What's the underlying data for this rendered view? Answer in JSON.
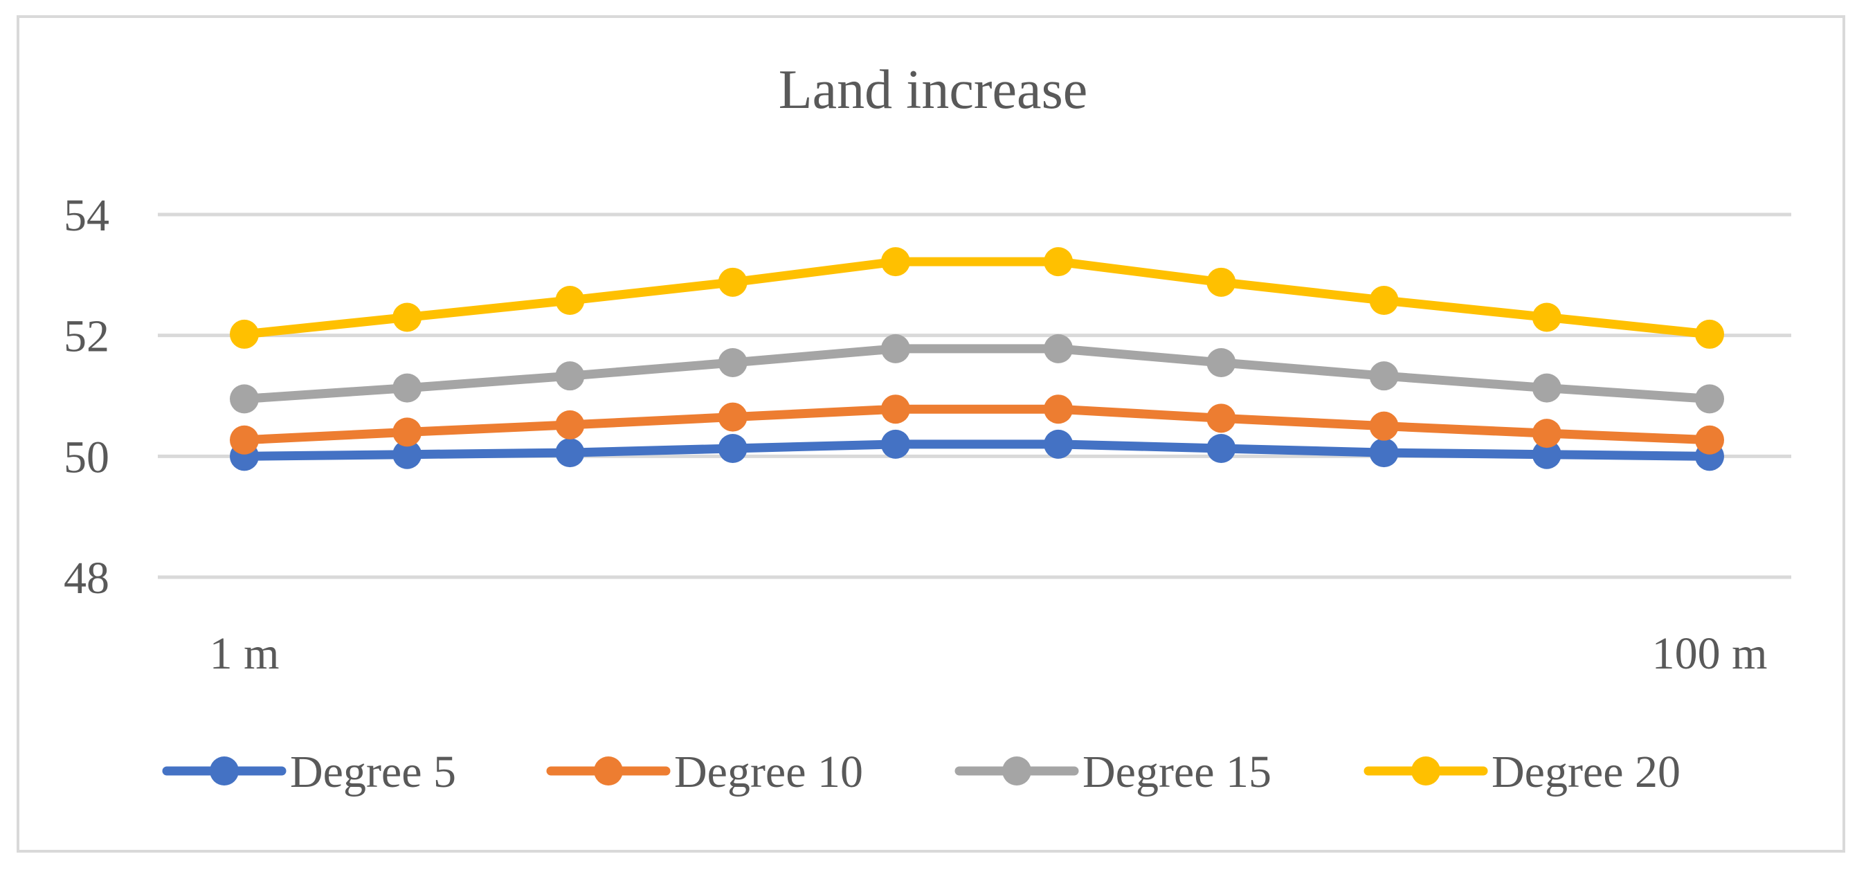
{
  "chart_data": {
    "type": "line",
    "title": "Land increase",
    "xlabel": "",
    "ylabel": "",
    "x_tick_labels": [
      "1 m",
      "100 m"
    ],
    "x": [
      1,
      2,
      3,
      4,
      5,
      6,
      7,
      8,
      9,
      10
    ],
    "ylim": [
      48,
      54
    ],
    "yticks": [
      48,
      50,
      52,
      54
    ],
    "y_tick_labels": [
      "48",
      "50",
      "52",
      "54"
    ],
    "grid": true,
    "legend_position": "bottom",
    "series": [
      {
        "name": "Degree 5",
        "color": "#4472c4",
        "values": [
          50.0,
          50.03,
          50.06,
          50.13,
          50.2,
          50.2,
          50.13,
          50.06,
          50.03,
          50.0
        ]
      },
      {
        "name": "Degree 10",
        "color": "#ed7d31",
        "values": [
          50.27,
          50.4,
          50.52,
          50.65,
          50.78,
          50.78,
          50.63,
          50.5,
          50.38,
          50.27
        ]
      },
      {
        "name": "Degree 15",
        "color": "#a5a5a5",
        "values": [
          50.95,
          51.13,
          51.33,
          51.55,
          51.78,
          51.78,
          51.55,
          51.33,
          51.13,
          50.95
        ]
      },
      {
        "name": "Degree 20",
        "color": "#ffc000",
        "values": [
          52.02,
          52.3,
          52.58,
          52.88,
          53.22,
          53.22,
          52.88,
          52.58,
          52.3,
          52.02
        ]
      }
    ]
  }
}
